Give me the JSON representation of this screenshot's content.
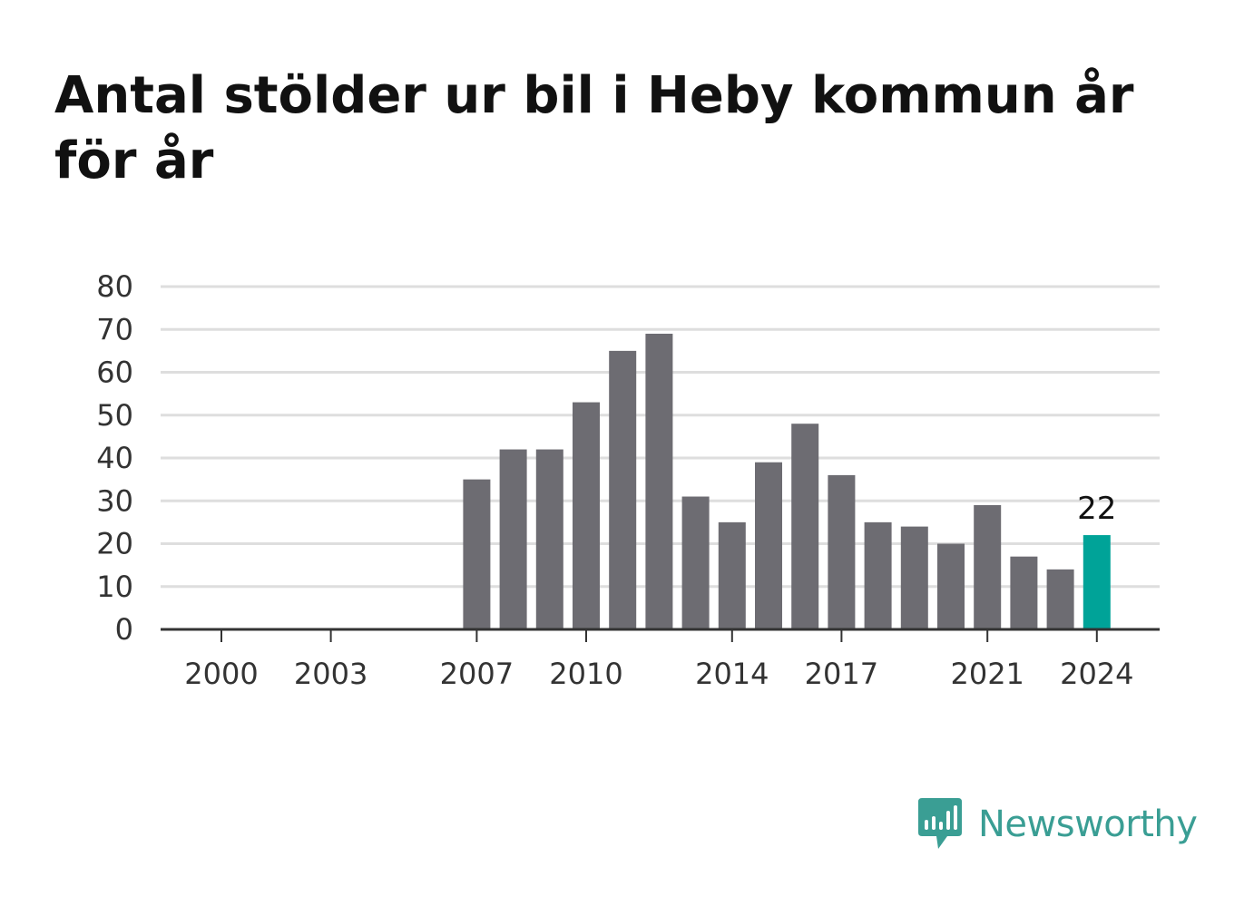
{
  "title": "Antal stölder ur bil i Heby kommun år för år",
  "brand": {
    "name": "Newsworthy",
    "icon": "newsworthy-logo-icon",
    "color": "#3a9e94"
  },
  "colors": {
    "bar": "#6d6c72",
    "highlight": "#00a398",
    "grid": "#dedede",
    "axis": "#333333",
    "text": "#333333"
  },
  "chart_data": {
    "type": "bar",
    "x": [
      2000,
      2001,
      2002,
      2003,
      2004,
      2005,
      2006,
      2007,
      2008,
      2009,
      2010,
      2011,
      2012,
      2013,
      2014,
      2015,
      2016,
      2017,
      2018,
      2019,
      2020,
      2021,
      2022,
      2023,
      2024
    ],
    "values": [
      null,
      null,
      null,
      null,
      null,
      null,
      null,
      35,
      42,
      42,
      53,
      65,
      69,
      31,
      25,
      39,
      48,
      36,
      25,
      24,
      20,
      29,
      17,
      14,
      22
    ],
    "x_tick_labels": [
      "2000",
      "2003",
      "2007",
      "2010",
      "2014",
      "2017",
      "2021",
      "2024"
    ],
    "y_ticks": [
      0,
      10,
      20,
      30,
      40,
      50,
      60,
      70,
      80
    ],
    "ylim": [
      0,
      80
    ],
    "highlight": {
      "x": 2024,
      "value": 22,
      "label": "22"
    },
    "grid": true,
    "legend": "none"
  }
}
